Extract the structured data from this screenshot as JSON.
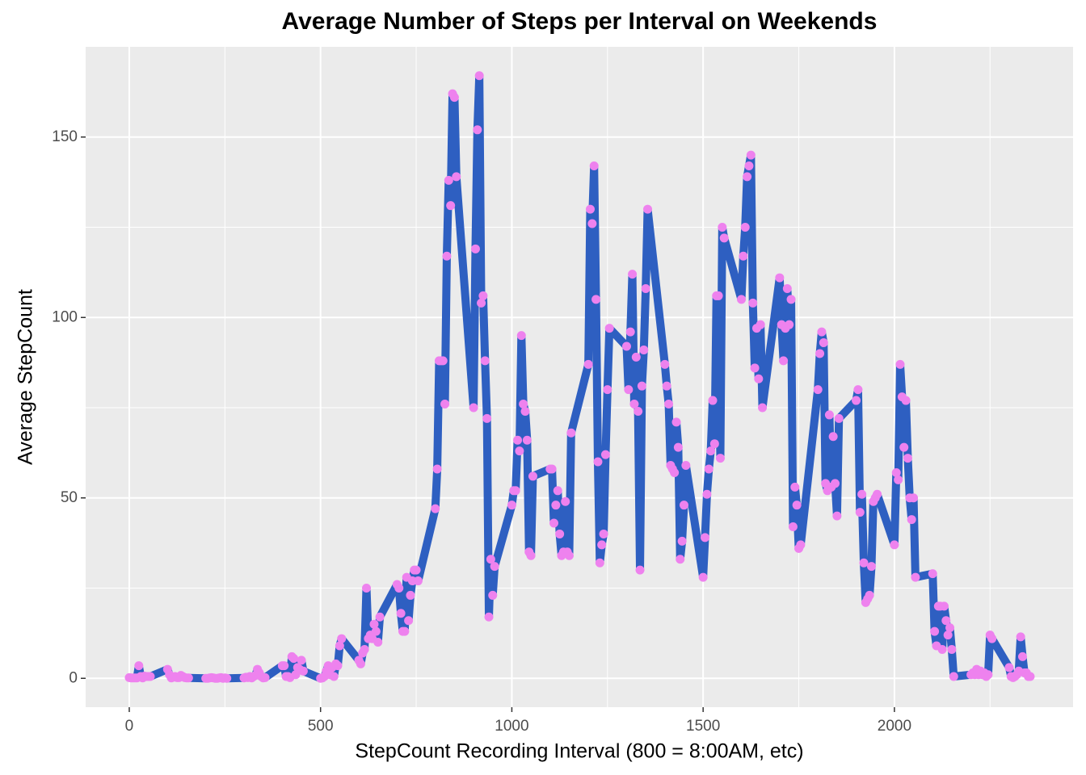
{
  "chart_data": {
    "type": "line",
    "title": "Average Number of Steps per Interval on Weekends",
    "x_label": "StepCount Recording Interval (800 = 8:00AM, etc)",
    "y_label": "Average StepCount",
    "x": [
      0,
      5,
      10,
      15,
      20,
      25,
      30,
      35,
      40,
      45,
      50,
      55,
      100,
      105,
      110,
      115,
      120,
      125,
      130,
      135,
      140,
      145,
      150,
      155,
      200,
      205,
      210,
      215,
      220,
      225,
      230,
      235,
      240,
      245,
      250,
      255,
      300,
      305,
      310,
      315,
      320,
      325,
      330,
      335,
      340,
      345,
      350,
      355,
      400,
      405,
      410,
      415,
      420,
      425,
      430,
      435,
      440,
      445,
      450,
      455,
      500,
      505,
      510,
      515,
      520,
      525,
      530,
      535,
      540,
      545,
      550,
      555,
      600,
      605,
      610,
      615,
      620,
      625,
      630,
      635,
      640,
      645,
      650,
      655,
      700,
      705,
      710,
      715,
      720,
      725,
      730,
      735,
      740,
      745,
      750,
      755,
      800,
      805,
      810,
      815,
      820,
      825,
      830,
      835,
      840,
      845,
      850,
      855,
      900,
      905,
      910,
      915,
      920,
      925,
      930,
      935,
      940,
      945,
      950,
      955,
      1000,
      1005,
      1010,
      1015,
      1020,
      1025,
      1030,
      1035,
      1040,
      1045,
      1050,
      1055,
      1100,
      1105,
      1110,
      1115,
      1120,
      1125,
      1130,
      1135,
      1140,
      1145,
      1150,
      1155,
      1200,
      1205,
      1210,
      1215,
      1220,
      1225,
      1230,
      1235,
      1240,
      1245,
      1250,
      1255,
      1300,
      1305,
      1310,
      1315,
      1320,
      1325,
      1330,
      1335,
      1340,
      1345,
      1350,
      1355,
      1400,
      1405,
      1410,
      1415,
      1420,
      1425,
      1430,
      1435,
      1440,
      1445,
      1450,
      1455,
      1500,
      1505,
      1510,
      1515,
      1520,
      1525,
      1530,
      1535,
      1540,
      1545,
      1550,
      1555,
      1600,
      1605,
      1610,
      1615,
      1620,
      1625,
      1630,
      1635,
      1640,
      1645,
      1650,
      1655,
      1700,
      1705,
      1710,
      1715,
      1720,
      1725,
      1730,
      1735,
      1740,
      1745,
      1750,
      1755,
      1800,
      1805,
      1810,
      1815,
      1820,
      1825,
      1830,
      1835,
      1840,
      1845,
      1850,
      1855,
      1900,
      1905,
      1910,
      1915,
      1920,
      1925,
      1930,
      1935,
      1940,
      1945,
      1950,
      1955,
      2000,
      2005,
      2010,
      2015,
      2020,
      2025,
      2030,
      2035,
      2040,
      2045,
      2050,
      2055,
      2100,
      2105,
      2110,
      2115,
      2120,
      2125,
      2130,
      2135,
      2140,
      2145,
      2150,
      2155,
      2200,
      2205,
      2210,
      2215,
      2220,
      2225,
      2230,
      2235,
      2240,
      2245,
      2250,
      2255,
      2300,
      2305,
      2310,
      2315,
      2320,
      2325,
      2330,
      2335,
      2340,
      2345,
      2350,
      2355
    ],
    "values": [
      0.2,
      0.1,
      0.1,
      0.1,
      0.1,
      3.5,
      0.5,
      0.1,
      0.6,
      0.5,
      0.5,
      0.5,
      2.5,
      1,
      0.1,
      0.3,
      0.5,
      0.2,
      0.2,
      0.8,
      0.5,
      0.2,
      0.1,
      0.1,
      0,
      0,
      0.1,
      0.2,
      0.1,
      0,
      0,
      0.1,
      0.2,
      0,
      0.1,
      0,
      0.1,
      0.3,
      0.2,
      0.5,
      0.1,
      0.5,
      0.8,
      2.5,
      1.5,
      0.5,
      0.1,
      0.2,
      3.5,
      3.5,
      0.5,
      0.5,
      0.2,
      6,
      5.5,
      1,
      3,
      2.5,
      5,
      2,
      0,
      0.1,
      0.5,
      2,
      3.5,
      1,
      3,
      0.5,
      4,
      3.5,
      9,
      11,
      5,
      4,
      7,
      8,
      25,
      11,
      12,
      11,
      15,
      13,
      10,
      17,
      26,
      25,
      18,
      13,
      13,
      28,
      16,
      23,
      27,
      30,
      30,
      27,
      47,
      58,
      88,
      88,
      88,
      76,
      117,
      138,
      131,
      162,
      161,
      139,
      75,
      119,
      152,
      167,
      104,
      106,
      88,
      72,
      17,
      33,
      23,
      31,
      48,
      52,
      52,
      66,
      63,
      95,
      76,
      74,
      66,
      35,
      34,
      56,
      58,
      58,
      43,
      48,
      52,
      40,
      34,
      35,
      49,
      35,
      34,
      68,
      87,
      130,
      126,
      142,
      105,
      60,
      32,
      37,
      40,
      62,
      80,
      97,
      92,
      80,
      96,
      112,
      76,
      89,
      74,
      30,
      81,
      91,
      108,
      130,
      87,
      81,
      76,
      59,
      58,
      57,
      71,
      64,
      33,
      38,
      48,
      59,
      28,
      39,
      51,
      58,
      63,
      77,
      65,
      106,
      106,
      61,
      125,
      122,
      105,
      117,
      125,
      139,
      142,
      145,
      104,
      86,
      97,
      83,
      98,
      75,
      111,
      98,
      88,
      97,
      108,
      98,
      105,
      42,
      53,
      48,
      36,
      37,
      80,
      90,
      96,
      93,
      54,
      52,
      73,
      53,
      67,
      54,
      45,
      72,
      77,
      80,
      46,
      51,
      32,
      21,
      22,
      23,
      31,
      49,
      50,
      51,
      37,
      57,
      55,
      87,
      78,
      64,
      77,
      61,
      50,
      44,
      50,
      28,
      29,
      13,
      9,
      20,
      20,
      8,
      20,
      16,
      12,
      14,
      8,
      0.5,
      1,
      1.5,
      1,
      2.5,
      1,
      2,
      1,
      1.5,
      0.5,
      1,
      12,
      11,
      3,
      0.5,
      0.2,
      0.5,
      1,
      2,
      11.5,
      6,
      1.5,
      1.5,
      0.5,
      0.5
    ],
    "line_color": "#2e5fc1",
    "point_color": "#ee82ee",
    "xlim": [
      -114,
      2467
    ],
    "ylim": [
      -8,
      175
    ],
    "xticks": [
      0,
      500,
      1000,
      1500,
      2000
    ],
    "yticks": [
      0,
      50,
      100,
      150
    ],
    "grid": true
  }
}
